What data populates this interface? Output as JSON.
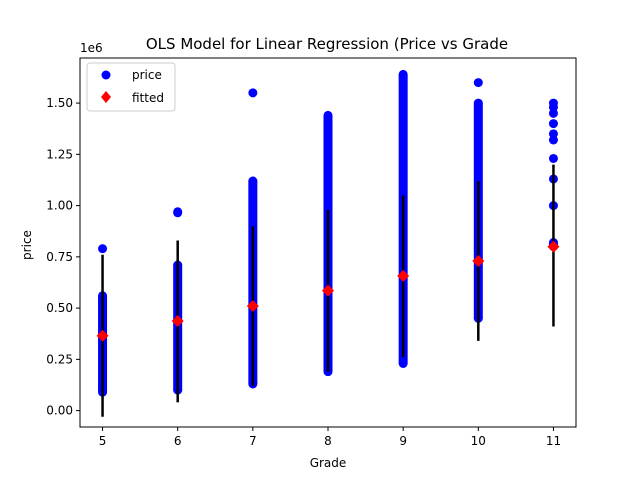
{
  "chart_data": {
    "type": "scatter",
    "title": "OLS Model for Linear Regression (Price vs Grade",
    "xlabel": "Grade",
    "ylabel": "price",
    "y_multiplier_label": "1e6",
    "xlim": [
      4.7,
      11.3
    ],
    "ylim": [
      -0.08,
      1.72
    ],
    "x_ticks": [
      5,
      6,
      7,
      8,
      9,
      10,
      11
    ],
    "y_ticks": [
      0.0,
      0.25,
      0.5,
      0.75,
      1.0,
      1.25,
      1.5
    ],
    "y_tick_labels": [
      "0.00",
      "0.25",
      "0.50",
      "0.75",
      "1.00",
      "1.25",
      "1.50"
    ],
    "legend_position": "top-left",
    "grid": false,
    "series": [
      {
        "name": "price",
        "marker": "circle",
        "color": "#0000ff",
        "ranges": [
          {
            "x": 5,
            "min": 0.09,
            "max": 0.56
          },
          {
            "x": 6,
            "min": 0.1,
            "max": 0.71
          },
          {
            "x": 7,
            "min": 0.13,
            "max": 1.12
          },
          {
            "x": 8,
            "min": 0.19,
            "max": 1.44
          },
          {
            "x": 9,
            "min": 0.23,
            "max": 1.64
          },
          {
            "x": 10,
            "min": 0.45,
            "max": 1.5
          },
          {
            "x": 11,
            "min": 0.8,
            "max": 0.82
          }
        ],
        "outliers": [
          {
            "x": 5,
            "y": 0.79
          },
          {
            "x": 6,
            "y": 0.97
          },
          {
            "x": 6,
            "y": 0.965
          },
          {
            "x": 7,
            "y": 1.55
          },
          {
            "x": 10,
            "y": 1.6
          },
          {
            "x": 11,
            "y": 1.0
          },
          {
            "x": 11,
            "y": 1.13
          },
          {
            "x": 11,
            "y": 1.23
          },
          {
            "x": 11,
            "y": 1.32
          },
          {
            "x": 11,
            "y": 1.35
          },
          {
            "x": 11,
            "y": 1.4
          },
          {
            "x": 11,
            "y": 1.45
          },
          {
            "x": 11,
            "y": 1.48
          },
          {
            "x": 11,
            "y": 1.5
          }
        ]
      },
      {
        "name": "fitted",
        "marker": "diamond",
        "color": "#ff0000",
        "x": [
          5,
          6,
          7,
          8,
          9,
          10,
          11
        ],
        "y": [
          0.365,
          0.437,
          0.51,
          0.585,
          0.657,
          0.73,
          0.8
        ]
      }
    ],
    "intervals": {
      "color": "#000000",
      "x": [
        5,
        6,
        7,
        8,
        9,
        10,
        11
      ],
      "low": [
        -0.03,
        0.04,
        0.12,
        0.19,
        0.26,
        0.34,
        0.41
      ],
      "high": [
        0.76,
        0.83,
        0.9,
        0.98,
        1.05,
        1.12,
        1.2
      ]
    }
  }
}
